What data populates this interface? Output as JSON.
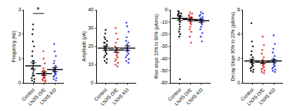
{
  "chart_data": [
    {
      "type": "scatter",
      "y_label": "Frequency (Hz)",
      "categories": [
        "Control",
        "LNX5 O/E",
        "LNX5 KO"
      ],
      "colors": [
        "#000000",
        "#e8201e",
        "#2030d8"
      ],
      "points": [
        [
          2.4,
          2.2,
          2.0,
          1.7,
          1.5,
          1.3,
          1.1,
          0.9,
          0.8,
          0.6,
          0.5,
          0.4,
          0.3,
          0.2,
          0.15,
          0.1,
          0.05,
          0.3,
          0.6,
          0.9
        ],
        [
          1.3,
          1.0,
          0.8,
          0.6,
          0.5,
          0.4,
          0.35,
          0.3,
          0.25,
          0.2,
          0.15,
          0.1,
          0.1,
          0.05,
          0.3,
          0.2,
          0.4,
          0.5
        ],
        [
          1.6,
          1.3,
          1.1,
          0.9,
          0.8,
          0.7,
          0.6,
          0.5,
          0.45,
          0.4,
          0.35,
          0.3,
          0.25,
          0.2,
          0.15,
          0.1,
          0.5,
          0.6
        ]
      ],
      "means": [
        0.7,
        0.38,
        0.55
      ],
      "errors": [
        0.13,
        0.07,
        0.09
      ],
      "ylim": [
        0,
        3
      ],
      "yticks": [
        0,
        1,
        2,
        3
      ],
      "significance": [
        {
          "from": "Control",
          "to": "LNX5 O/E",
          "y": 2.85,
          "text": "*"
        }
      ]
    },
    {
      "type": "scatter",
      "y_label": "Amplitude (pA)",
      "categories": [
        "Control",
        "LNX5 O/E",
        "LNX5 KO"
      ],
      "colors": [
        "#000000",
        "#e8201e",
        "#2030d8"
      ],
      "points": [
        [
          29,
          27,
          25,
          23,
          22,
          21,
          20,
          19,
          18,
          18,
          17,
          16,
          15,
          14,
          13,
          12,
          11,
          20,
          22,
          24
        ],
        [
          30,
          27,
          24,
          22,
          20,
          19,
          18,
          17,
          17,
          16,
          15,
          14,
          13,
          12,
          11,
          10,
          9,
          19
        ],
        [
          33,
          31,
          28,
          25,
          23,
          21,
          20,
          19,
          18,
          18,
          17,
          16,
          15,
          14,
          13,
          12,
          11,
          22
        ]
      ],
      "means": [
        19,
        18,
        19
      ],
      "errors": [
        1.1,
        1.2,
        1.3
      ],
      "ylim": [
        0,
        40
      ],
      "yticks": [
        0,
        10,
        20,
        30,
        40
      ]
    },
    {
      "type": "scatter",
      "y_label": "Rise slope 10% to 90% (pA/ms)",
      "categories": [
        "Control",
        "LNX5 O/E",
        "LNX5 KO"
      ],
      "colors": [
        "#000000",
        "#e8201e",
        "#2030d8"
      ],
      "points": [
        [
          -1,
          -2,
          -3,
          -4,
          -5,
          -6,
          -7,
          -8,
          -10,
          -12,
          -14,
          -16,
          -18,
          -20,
          -22,
          -57,
          -3,
          -5
        ],
        [
          -2,
          -3,
          -4,
          -5,
          -6,
          -7,
          -8,
          -9,
          -10,
          -11,
          -12,
          -14,
          -16,
          -18,
          -22,
          -27,
          -6
        ],
        [
          -2,
          -3,
          -4,
          -5,
          -6,
          -7,
          -8,
          -9,
          -10,
          -11,
          -12,
          -14,
          -16,
          -19,
          -22,
          -26,
          -8
        ]
      ],
      "means": [
        -7,
        -8,
        -9
      ],
      "errors": [
        1.8,
        1.2,
        1.3
      ],
      "ylim": [
        -60,
        0
      ],
      "yticks": [
        -60,
        -50,
        -40,
        -30,
        -20,
        -10,
        0
      ]
    },
    {
      "type": "scatter",
      "y_label": "Decay Slope 90% to 10% (pA/ms)",
      "categories": [
        "Control",
        "LNX5 O/E",
        "LNX5 KO"
      ],
      "colors": [
        "#000000",
        "#e8201e",
        "#2030d8"
      ],
      "points": [
        [
          4.9,
          3.4,
          3.0,
          2.6,
          2.3,
          2.1,
          1.9,
          1.8,
          1.7,
          1.6,
          1.5,
          1.4,
          1.3,
          1.2,
          1.1,
          1.0,
          0.9,
          1.8
        ],
        [
          3.8,
          3.1,
          2.7,
          2.4,
          2.1,
          1.9,
          1.8,
          1.7,
          1.6,
          1.5,
          1.4,
          1.3,
          1.2,
          1.1,
          1.0,
          0.9,
          0.8
        ],
        [
          3.9,
          3.2,
          2.8,
          2.5,
          2.2,
          2.0,
          1.9,
          1.8,
          1.7,
          1.6,
          1.5,
          1.4,
          1.3,
          1.2,
          1.1,
          1.0,
          0.9
        ]
      ],
      "means": [
        1.8,
        1.7,
        1.8
      ],
      "errors": [
        0.15,
        0.12,
        0.12
      ],
      "ylim": [
        0,
        6
      ],
      "yticks": [
        0,
        2,
        4,
        6
      ]
    }
  ]
}
